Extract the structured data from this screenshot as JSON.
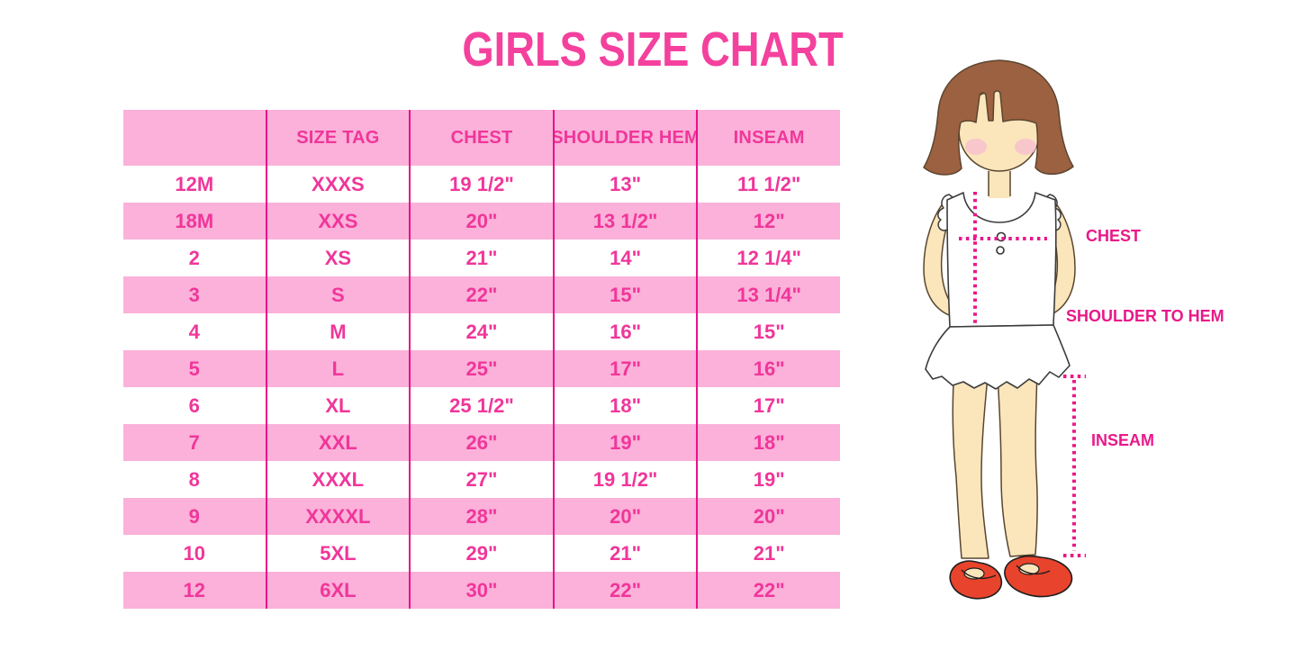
{
  "title": "GIRLS SIZE CHART",
  "chart_data": {
    "type": "table",
    "title": "GIRLS SIZE CHART",
    "columns": [
      "",
      "SIZE TAG",
      "CHEST",
      "SHOULDER HEM",
      "INSEAM"
    ],
    "rows": [
      [
        "12M",
        "XXXS",
        "19 1/2\"",
        "13\"",
        "11 1/2\""
      ],
      [
        "18M",
        "XXS",
        "20\"",
        "13 1/2\"",
        "12\""
      ],
      [
        "2",
        "XS",
        "21\"",
        "14\"",
        "12 1/4\""
      ],
      [
        "3",
        "S",
        "22\"",
        "15\"",
        "13 1/4\""
      ],
      [
        "4",
        "M",
        "24\"",
        "16\"",
        "15\""
      ],
      [
        "5",
        "L",
        "25\"",
        "17\"",
        "16\""
      ],
      [
        "6",
        "XL",
        "25 1/2\"",
        "18\"",
        "17\""
      ],
      [
        "7",
        "XXL",
        "26\"",
        "19\"",
        "18\""
      ],
      [
        "8",
        "XXXL",
        "27\"",
        "19 1/2\"",
        "19\""
      ],
      [
        "9",
        "XXXXL",
        "28\"",
        "20\"",
        "20\""
      ],
      [
        "10",
        "5XL",
        "29\"",
        "21\"",
        "21\""
      ],
      [
        "12",
        "6XL",
        "30\"",
        "22\"",
        "22\""
      ]
    ],
    "layout_hints": {
      "header_background": "#FBB1D9",
      "row_alternation": "white / pink starting with white at 12M",
      "column_dividers": "hot pink vertical lines"
    }
  },
  "diagram_labels": {
    "chest": "CHEST",
    "shoulder_to_hem": "SHOULDER TO HEM",
    "inseam": "INSEAM"
  },
  "colors": {
    "title_pink": "#F4419E",
    "table_text_pink": "#F0369A",
    "light_pink_band": "#FBB1D9",
    "divider_pink": "#E9118A",
    "measurement_pink": "#EA1889",
    "hair_brown": "#9C6141",
    "skin": "#FBE5BB",
    "blush": "#F6BFD1",
    "shoe_red": "#E8432C"
  }
}
